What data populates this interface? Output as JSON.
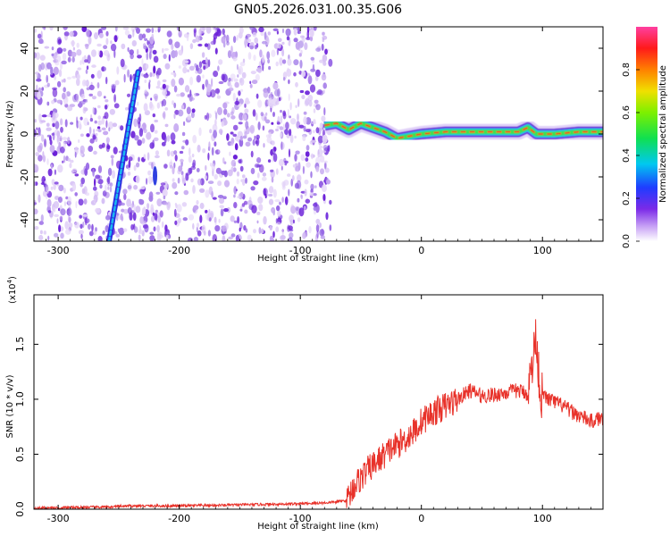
{
  "chart_data": [
    {
      "type": "heatmap",
      "title": "GN05.2026.031.00.35.G06",
      "xlabel": "Height of straight line (km)",
      "ylabel": "Frequency (Hz)",
      "xlim": [
        -320,
        150
      ],
      "ylim": [
        -50,
        50
      ],
      "xticks": [
        -300,
        -200,
        -100,
        0,
        100
      ],
      "yticks": [
        -40,
        -20,
        0,
        20,
        40
      ],
      "colorbar": {
        "label": "Normalized spectral amplitude",
        "range": [
          0,
          1
        ],
        "ticks": [
          "0.0",
          "0.2",
          "0.4",
          "0.6",
          "0.8"
        ]
      },
      "features": {
        "noise_region_x": [
          -320,
          -75
        ],
        "diagonal_trace": {
          "x": [
            -258,
            -234
          ],
          "y": [
            -50,
            29
          ]
        },
        "minor_blob": {
          "x": -220,
          "y_range": [
            -24,
            -15
          ]
        },
        "signal_trace": {
          "x": [
            -80,
            -70,
            -60,
            -50,
            -40,
            -30,
            -20,
            -10,
            0,
            20,
            40,
            60,
            80,
            88,
            95,
            110,
            130,
            150
          ],
          "y": [
            4,
            5,
            2,
            5,
            3,
            1,
            -2,
            -1,
            0,
            1,
            1,
            1,
            1,
            3,
            0,
            0,
            1,
            1
          ]
        }
      }
    },
    {
      "type": "line",
      "xlabel": "Height of straight line (km)",
      "ylabel": "SNR (10 * v/v)",
      "multiplier": "(x10",
      "multiplier_exp": "4",
      "xlim": [
        -320,
        150
      ],
      "ylim": [
        0,
        1.95
      ],
      "xticks": [
        -300,
        -200,
        -100,
        0,
        100
      ],
      "yticks": [
        "0.0",
        "0.5",
        "1.0",
        "1.5"
      ],
      "color": "#e8322a",
      "x": [
        -320,
        -260,
        -240,
        -200,
        -150,
        -100,
        -75,
        -62,
        -55,
        -45,
        -35,
        -25,
        -15,
        -5,
        0,
        10,
        20,
        30,
        40,
        50,
        60,
        70,
        80,
        88,
        92,
        95,
        98,
        105,
        115,
        125,
        140,
        150
      ],
      "y": [
        0.01,
        0.02,
        0.03,
        0.03,
        0.04,
        0.05,
        0.06,
        0.08,
        0.22,
        0.35,
        0.45,
        0.55,
        0.62,
        0.72,
        0.8,
        0.88,
        0.94,
        1.0,
        1.08,
        1.03,
        1.04,
        1.06,
        1.08,
        1.05,
        1.35,
        1.6,
        1.05,
        1.0,
        0.95,
        0.88,
        0.8,
        0.83
      ]
    }
  ]
}
